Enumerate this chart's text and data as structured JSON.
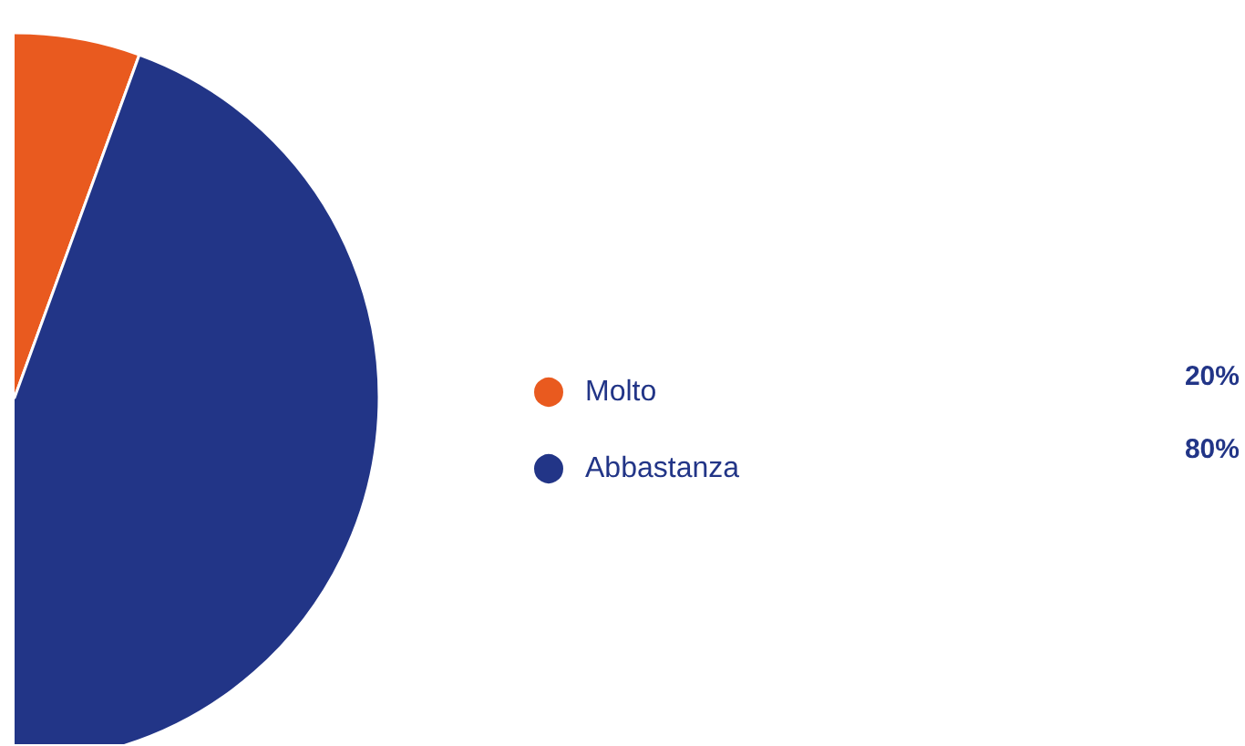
{
  "chart_data": {
    "type": "pie",
    "categories": [
      "Molto",
      "Abbastanza"
    ],
    "values": [
      20,
      80
    ],
    "colors": [
      "#e95a1f",
      "#223587"
    ],
    "value_labels": [
      "20%",
      "80%"
    ],
    "legend": "right"
  }
}
